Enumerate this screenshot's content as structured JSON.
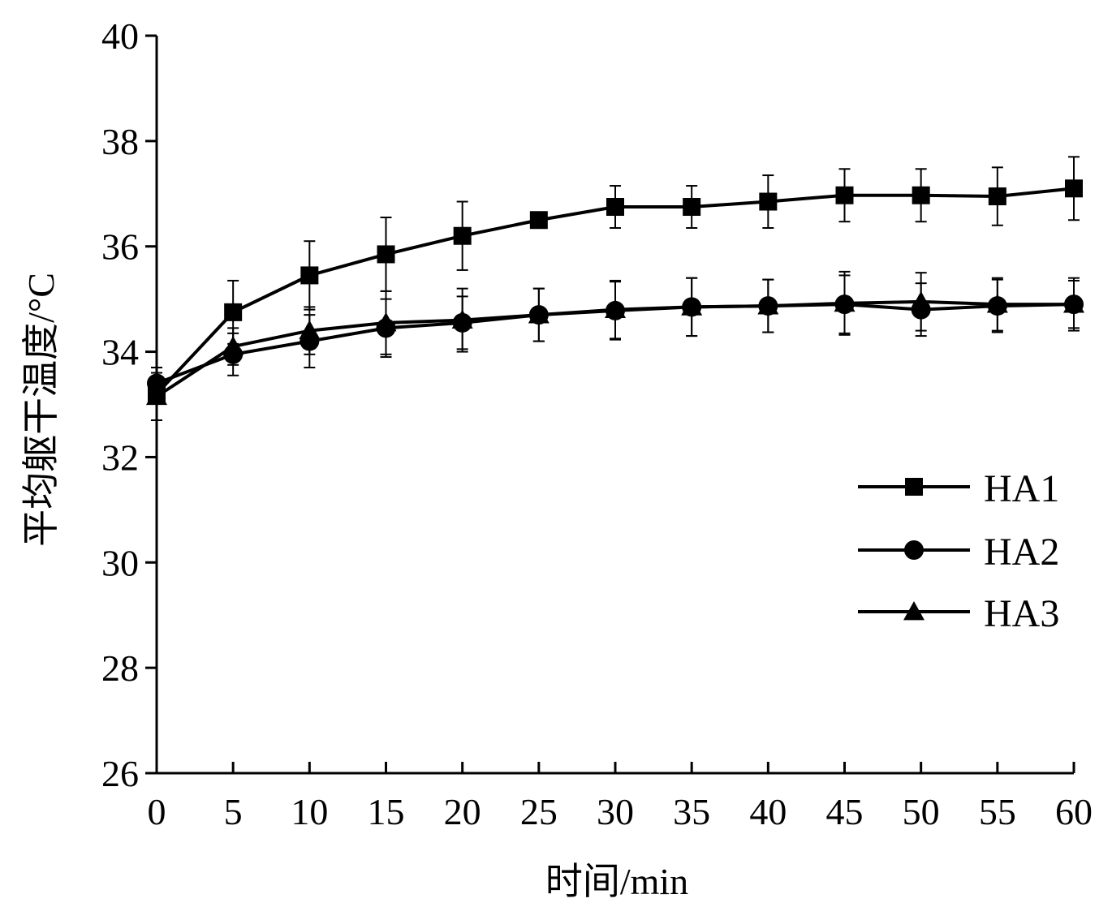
{
  "chart_data": {
    "type": "line",
    "title": "",
    "xlabel": "时间/min",
    "ylabel": "平均躯干温度/°C",
    "x": [
      0,
      5,
      10,
      15,
      20,
      25,
      30,
      35,
      40,
      45,
      50,
      55,
      60
    ],
    "xticks": [
      "0",
      "5",
      "10",
      "15",
      "20",
      "25",
      "30",
      "35",
      "40",
      "45",
      "50",
      "55",
      "60"
    ],
    "yticks": [
      "26",
      "28",
      "30",
      "32",
      "34",
      "36",
      "38",
      "40"
    ],
    "xlim": [
      0,
      60
    ],
    "ylim": [
      26,
      40
    ],
    "grid": false,
    "legend_position": "right",
    "series": [
      {
        "name": "HA1",
        "marker": "square",
        "values": [
          33.2,
          34.75,
          35.45,
          35.85,
          36.2,
          36.5,
          36.75,
          36.75,
          36.85,
          36.97,
          36.97,
          36.95,
          37.1
        ],
        "errors": [
          0.5,
          0.6,
          0.65,
          0.7,
          0.65,
          0.1,
          0.4,
          0.4,
          0.5,
          0.5,
          0.5,
          0.55,
          0.6
        ]
      },
      {
        "name": "HA2",
        "marker": "circle",
        "values": [
          33.4,
          33.95,
          34.2,
          34.45,
          34.55,
          34.7,
          34.78,
          34.85,
          34.87,
          34.9,
          34.8,
          34.87,
          34.9
        ],
        "errors": [
          0.3,
          0.4,
          0.5,
          0.55,
          0.5,
          0.5,
          0.55,
          0.55,
          0.5,
          0.55,
          0.5,
          0.5,
          0.5
        ]
      },
      {
        "name": "HA3",
        "marker": "triangle",
        "values": [
          33.15,
          34.1,
          34.4,
          34.55,
          34.6,
          34.7,
          34.8,
          34.85,
          34.87,
          34.92,
          34.95,
          34.9,
          34.9
        ],
        "errors": [
          0.45,
          0.35,
          0.45,
          0.6,
          0.6,
          0.5,
          0.55,
          0.55,
          0.5,
          0.6,
          0.55,
          0.5,
          0.45
        ]
      }
    ]
  }
}
